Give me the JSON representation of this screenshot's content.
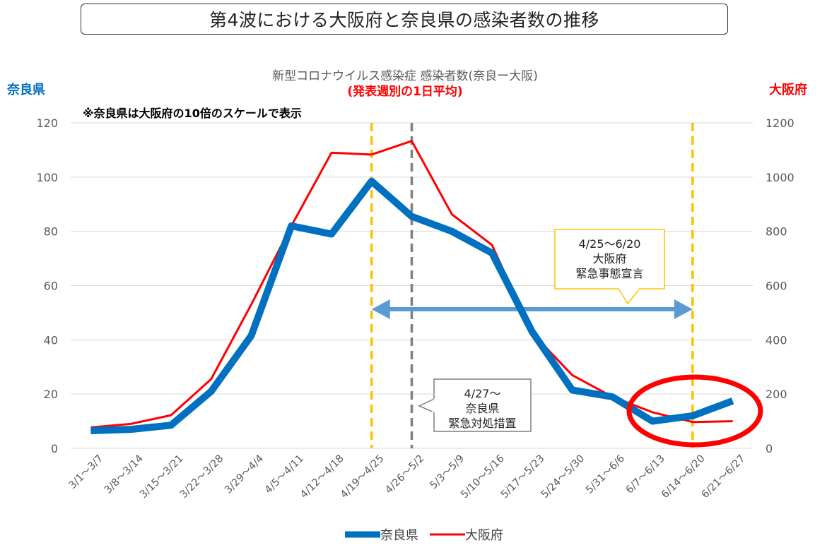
{
  "page": {
    "title": "第4波における大阪府と奈良県の感染者数の推移"
  },
  "chart_data": {
    "type": "line",
    "title": "新型コロナウイルス感染症 感染者数(奈良ー大阪)",
    "subtitle": "(発表週別の1日平均)",
    "note": "※奈良県は大阪府の10倍のスケールで表示",
    "left_axis_label": "奈良県",
    "right_axis_label": "大阪府",
    "categories": [
      "3/1〜3/7",
      "3/8〜3/14",
      "3/15〜3/21",
      "3/22〜3/28",
      "3/29〜4/4",
      "4/5〜4/11",
      "4/12〜4/18",
      "4/19〜4/25",
      "4/26〜5/2",
      "5/3〜5/9",
      "5/10〜5/16",
      "5/17〜5/23",
      "5/24〜5/30",
      "5/31〜6/6",
      "6/7〜6/13",
      "6/14〜6/20",
      "6/21〜6/27"
    ],
    "left_ylim": [
      0,
      120
    ],
    "left_ticks": [
      0,
      20,
      40,
      60,
      80,
      100,
      120
    ],
    "right_ylim": [
      0,
      1200
    ],
    "right_ticks": [
      0,
      200,
      400,
      600,
      800,
      1000,
      1200
    ],
    "grid": true,
    "legend_position": "bottom",
    "series": [
      {
        "name": "奈良県",
        "axis": "left",
        "color": "#0070c0",
        "values": [
          6.5,
          7,
          8.5,
          21,
          41.5,
          82,
          79,
          98.5,
          85.5,
          80,
          72,
          43,
          21.5,
          19,
          10,
          12,
          17.5
        ]
      },
      {
        "name": "大阪府",
        "axis": "right",
        "color": "#ff0000",
        "values": [
          77,
          90,
          122,
          255,
          530,
          820,
          1090,
          1083,
          1133,
          863,
          750,
          425,
          270,
          190,
          133,
          97,
          100
        ]
      }
    ],
    "vertical_markers": [
      {
        "category_index": 7,
        "color": "#ffc000",
        "style": "dashed"
      },
      {
        "category_index": 8,
        "color": "#7f7f7f",
        "style": "dashed"
      },
      {
        "category_index": 15,
        "color": "#ffc000",
        "style": "dashed"
      }
    ],
    "annotations": [
      {
        "lines": [
          "4/25〜6/20",
          "大阪府",
          "緊急事態宣言"
        ],
        "border_color": "#ffc000"
      },
      {
        "lines": [
          "4/27〜",
          "奈良県",
          "緊急対処措置"
        ],
        "border_color": "#7f7f7f"
      }
    ],
    "range_arrow": {
      "from_index": 7,
      "to_index": 15,
      "color": "#5b9bd5"
    },
    "highlight_ellipse_color": "#ff0000"
  }
}
